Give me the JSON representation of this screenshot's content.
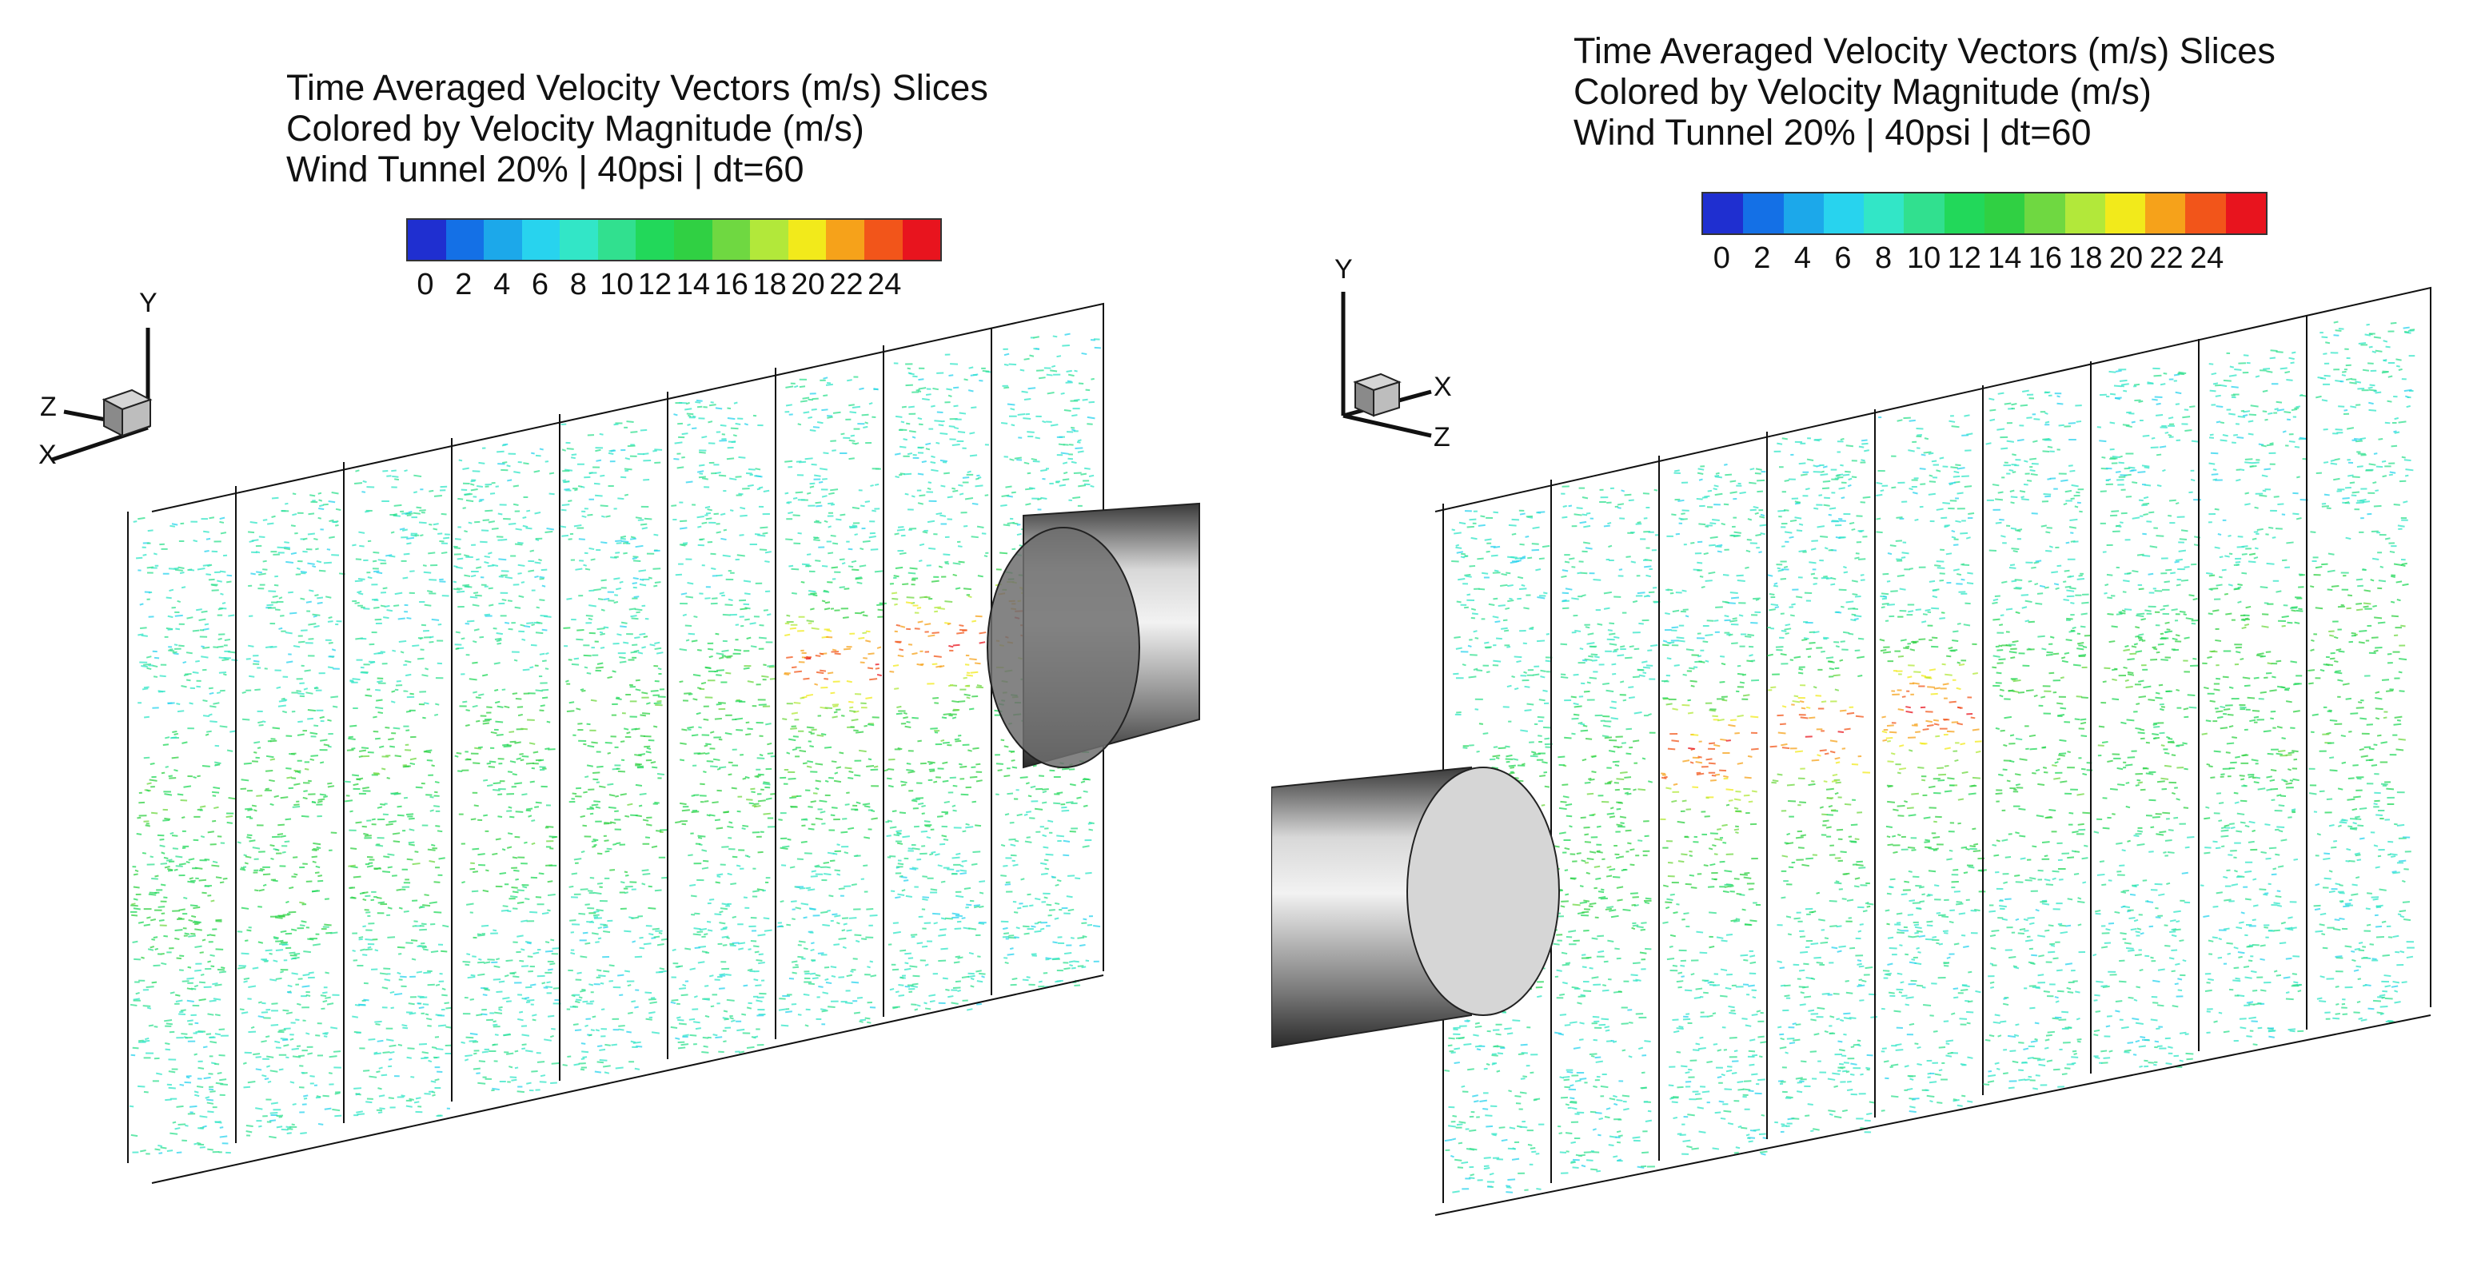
{
  "legend_colors": [
    "#1f2fd0",
    "#1470e6",
    "#1ca8ea",
    "#28d3ee",
    "#32e6c7",
    "#31e08f",
    "#22d85a",
    "#30d043",
    "#6fd841",
    "#b2e83a",
    "#f2ea1b",
    "#f6a21a",
    "#f2551a",
    "#e8141e"
  ],
  "panels": [
    {
      "titles": {
        "line1": "Time Averaged Velocity Vectors (m/s) Slices",
        "line2": "Colored by Velocity Magnitude (m/s)",
        "line3": "Wind Tunnel 20% | 40psi | dt=60"
      },
      "ticks": [
        "0",
        "2",
        "4",
        "6",
        "8",
        "10",
        "12",
        "14",
        "16",
        "18",
        "20",
        "22",
        "24"
      ],
      "axes": {
        "y": "Y",
        "a": "Z",
        "b": "X"
      }
    },
    {
      "titles": {
        "line1": "Time Averaged Velocity Vectors (m/s) Slices",
        "line2": "Colored by Velocity Magnitude (m/s)",
        "line3": "Wind Tunnel 20% | 40psi | dt=60"
      },
      "ticks": [
        "0",
        "2",
        "4",
        "6",
        "8",
        "10",
        "12",
        "14",
        "16",
        "18",
        "20",
        "22",
        "24"
      ],
      "axes": {
        "y": "Y",
        "a": "X",
        "b": "Z"
      }
    }
  ]
}
